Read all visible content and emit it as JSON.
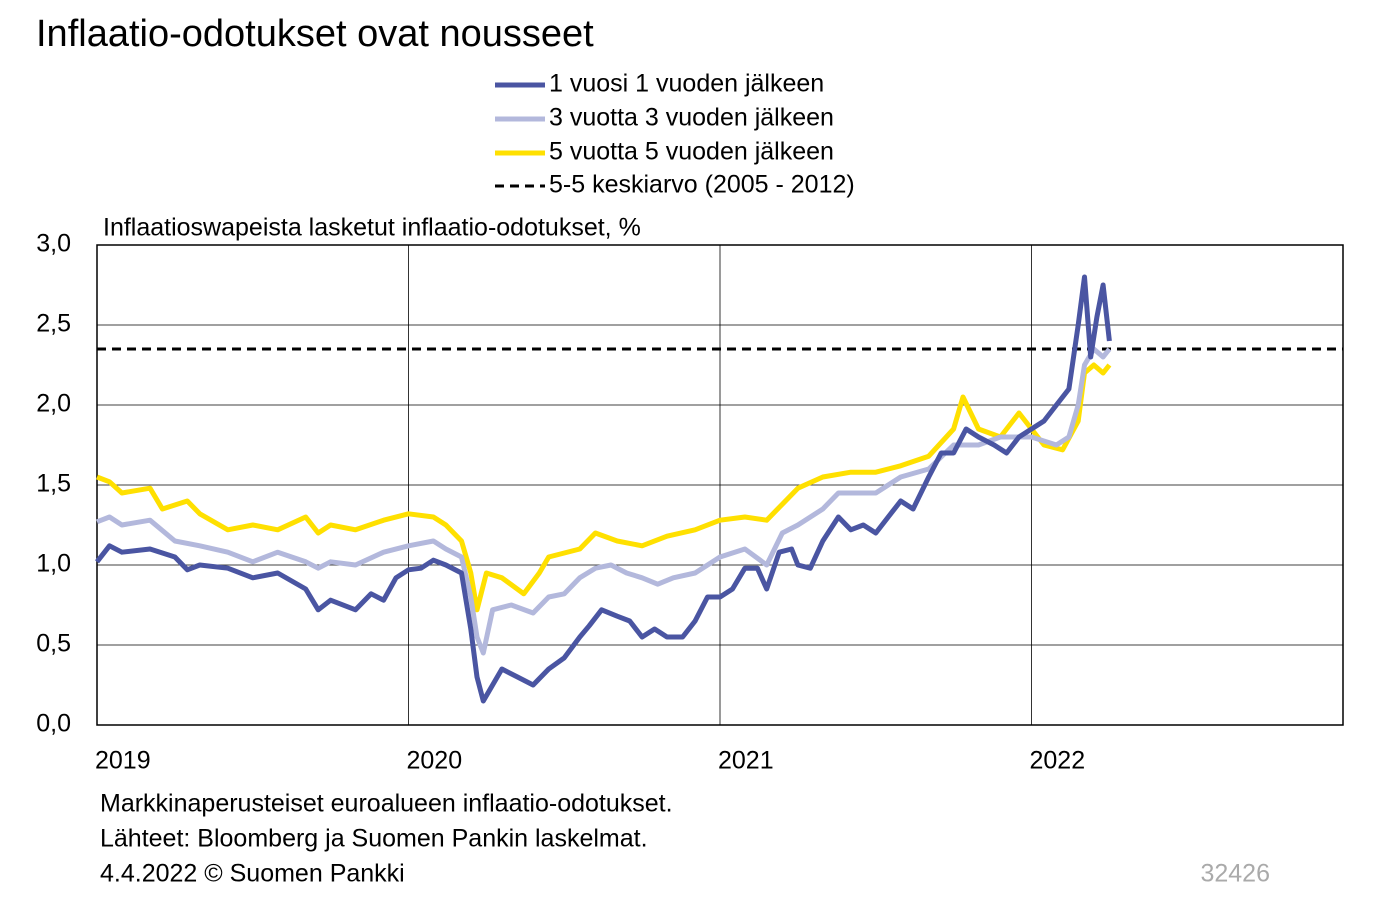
{
  "chart_data": {
    "type": "line",
    "title": "Inflaatio-odotukset ovat nousseet",
    "y_label": "Inflaatioswapeista  lasketut inflaatio-odotukset,  %",
    "notes": [
      "Markkinaperusteiset  euroalueen  inflaatio-odotukset.",
      "Lähteet:  Bloomberg ja Suomen Pankin laskelmat.",
      "4.4.2022 © Suomen Pankki"
    ],
    "id_number": "32426",
    "xlim": [
      2019,
      2023
    ],
    "xticks": [
      2019,
      2020,
      2021,
      2022
    ],
    "ylim": [
      0,
      3
    ],
    "yticks": [
      {
        "value": 0,
        "label": "0,0"
      },
      {
        "value": 0.5,
        "label": "0,5"
      },
      {
        "value": 1,
        "label": "1,0"
      },
      {
        "value": 1.5,
        "label": "1,5"
      },
      {
        "value": 2,
        "label": "2,0"
      },
      {
        "value": 2.5,
        "label": "2,5"
      },
      {
        "value": 3,
        "label": "3,0"
      }
    ],
    "grid": true,
    "series": [
      {
        "name": "1 vuosi 1 vuoden jälkeen",
        "color": "#4a55a2",
        "x": [
          2019.0,
          2019.04,
          2019.08,
          2019.17,
          2019.25,
          2019.29,
          2019.33,
          2019.42,
          2019.5,
          2019.58,
          2019.67,
          2019.71,
          2019.75,
          2019.83,
          2019.88,
          2019.92,
          2019.96,
          2020.0,
          2020.04,
          2020.08,
          2020.12,
          2020.17,
          2020.2,
          2020.22,
          2020.24,
          2020.27,
          2020.3,
          2020.35,
          2020.4,
          2020.45,
          2020.5,
          2020.55,
          2020.58,
          2020.62,
          2020.67,
          2020.71,
          2020.75,
          2020.79,
          2020.83,
          2020.88,
          2020.92,
          2020.96,
          2021.0,
          2021.04,
          2021.08,
          2021.12,
          2021.15,
          2021.19,
          2021.23,
          2021.25,
          2021.29,
          2021.33,
          2021.38,
          2021.42,
          2021.46,
          2021.5,
          2021.54,
          2021.58,
          2021.62,
          2021.67,
          2021.71,
          2021.75,
          2021.79,
          2021.83,
          2021.88,
          2021.92,
          2021.96,
          2022.0,
          2022.04,
          2022.08,
          2022.12,
          2022.15,
          2022.17,
          2022.19,
          2022.21,
          2022.23,
          2022.25
        ],
        "values": [
          1.02,
          1.12,
          1.08,
          1.1,
          1.05,
          0.97,
          1.0,
          0.98,
          0.92,
          0.95,
          0.85,
          0.72,
          0.78,
          0.72,
          0.82,
          0.78,
          0.92,
          0.97,
          0.98,
          1.03,
          1.0,
          0.95,
          0.6,
          0.3,
          0.15,
          0.25,
          0.35,
          0.3,
          0.25,
          0.35,
          0.42,
          0.55,
          0.62,
          0.72,
          0.68,
          0.65,
          0.55,
          0.6,
          0.55,
          0.55,
          0.65,
          0.8,
          0.8,
          0.85,
          0.98,
          0.98,
          0.85,
          1.08,
          1.1,
          1.0,
          0.98,
          1.15,
          1.3,
          1.22,
          1.25,
          1.2,
          1.3,
          1.4,
          1.35,
          1.55,
          1.7,
          1.7,
          1.85,
          1.8,
          1.75,
          1.7,
          1.8,
          1.85,
          1.9,
          2.0,
          2.1,
          2.5,
          2.8,
          2.3,
          2.55,
          2.75,
          2.4
        ]
      },
      {
        "name": "3 vuotta 3 vuoden jälkeen",
        "color": "#b3b8dc",
        "x": [
          2019.0,
          2019.04,
          2019.08,
          2019.17,
          2019.25,
          2019.33,
          2019.42,
          2019.5,
          2019.58,
          2019.67,
          2019.71,
          2019.75,
          2019.83,
          2019.92,
          2020.0,
          2020.08,
          2020.12,
          2020.17,
          2020.2,
          2020.22,
          2020.24,
          2020.27,
          2020.33,
          2020.4,
          2020.45,
          2020.5,
          2020.55,
          2020.6,
          2020.65,
          2020.7,
          2020.75,
          2020.8,
          2020.85,
          2020.92,
          2021.0,
          2021.08,
          2021.15,
          2021.2,
          2021.25,
          2021.33,
          2021.38,
          2021.42,
          2021.5,
          2021.58,
          2021.67,
          2021.75,
          2021.83,
          2021.9,
          2022.0,
          2022.08,
          2022.12,
          2022.15,
          2022.17,
          2022.2,
          2022.23,
          2022.25
        ],
        "values": [
          1.27,
          1.3,
          1.25,
          1.28,
          1.15,
          1.12,
          1.08,
          1.02,
          1.08,
          1.02,
          0.98,
          1.02,
          1.0,
          1.08,
          1.12,
          1.15,
          1.1,
          1.05,
          0.8,
          0.55,
          0.45,
          0.72,
          0.75,
          0.7,
          0.8,
          0.82,
          0.92,
          0.98,
          1.0,
          0.95,
          0.92,
          0.88,
          0.92,
          0.95,
          1.05,
          1.1,
          1.0,
          1.2,
          1.25,
          1.35,
          1.45,
          1.45,
          1.45,
          1.55,
          1.6,
          1.75,
          1.75,
          1.8,
          1.8,
          1.75,
          1.8,
          2.0,
          2.25,
          2.35,
          2.3,
          2.35
        ]
      },
      {
        "name": "5 vuotta 5 vuoden jälkeen",
        "color": "#ffe000",
        "x": [
          2019.0,
          2019.04,
          2019.08,
          2019.17,
          2019.21,
          2019.29,
          2019.33,
          2019.42,
          2019.5,
          2019.58,
          2019.67,
          2019.71,
          2019.75,
          2019.83,
          2019.92,
          2020.0,
          2020.08,
          2020.12,
          2020.17,
          2020.2,
          2020.22,
          2020.25,
          2020.3,
          2020.37,
          2020.42,
          2020.45,
          2020.55,
          2020.6,
          2020.67,
          2020.75,
          2020.83,
          2020.92,
          2021.0,
          2021.08,
          2021.15,
          2021.2,
          2021.25,
          2021.33,
          2021.42,
          2021.5,
          2021.58,
          2021.67,
          2021.75,
          2021.78,
          2021.83,
          2021.9,
          2021.96,
          2022.0,
          2022.04,
          2022.1,
          2022.15,
          2022.17,
          2022.2,
          2022.23,
          2022.25
        ],
        "values": [
          1.55,
          1.52,
          1.45,
          1.48,
          1.35,
          1.4,
          1.32,
          1.22,
          1.25,
          1.22,
          1.3,
          1.2,
          1.25,
          1.22,
          1.28,
          1.32,
          1.3,
          1.25,
          1.15,
          0.95,
          0.72,
          0.95,
          0.92,
          0.82,
          0.95,
          1.05,
          1.1,
          1.2,
          1.15,
          1.12,
          1.18,
          1.22,
          1.28,
          1.3,
          1.28,
          1.38,
          1.48,
          1.55,
          1.58,
          1.58,
          1.62,
          1.68,
          1.85,
          2.05,
          1.85,
          1.8,
          1.95,
          1.85,
          1.75,
          1.72,
          1.9,
          2.2,
          2.25,
          2.2,
          2.25
        ]
      }
    ],
    "reference_line": {
      "name": "5-5 keskiarvo (2005 - 2012)",
      "value": 2.35,
      "color": "#000000"
    }
  }
}
